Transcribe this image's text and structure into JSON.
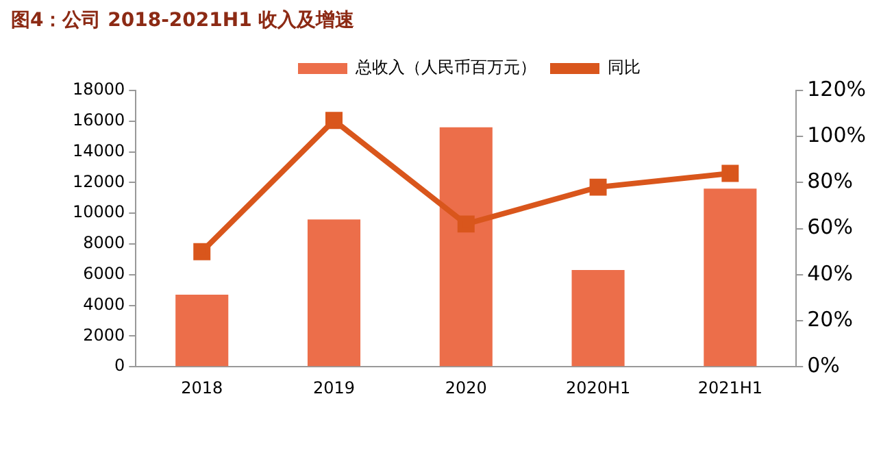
{
  "chart_data": {
    "type": "bar",
    "title": "图4：公司 2018-2021H1 收入及增速",
    "categories": [
      "2018",
      "2019",
      "2020",
      "2020H1",
      "2021H1"
    ],
    "series": [
      {
        "name": "总收入（人民币百万元）",
        "color": "#ec6e4a",
        "values": [
          4700,
          9600,
          15600,
          6300,
          11600
        ]
      },
      {
        "name": "同比",
        "type": "line",
        "axis": "y2",
        "color": "#d9561c",
        "marker": "square",
        "values": [
          50,
          107,
          62,
          78,
          84
        ]
      }
    ],
    "ylim": [
      0,
      18000
    ],
    "yticks": [
      0,
      2000,
      4000,
      6000,
      8000,
      10000,
      12000,
      14000,
      16000,
      18000
    ],
    "y2lim": [
      0,
      120
    ],
    "y2ticks": [
      {
        "value": 0,
        "label": "0%"
      },
      {
        "value": 20,
        "label": "20%"
      },
      {
        "value": 40,
        "label": "40%"
      },
      {
        "value": 60,
        "label": "60%"
      },
      {
        "value": 80,
        "label": "80%"
      },
      {
        "value": 100,
        "label": "100%"
      },
      {
        "value": 120,
        "label": "120%"
      }
    ],
    "grid": false,
    "legend": "top"
  }
}
